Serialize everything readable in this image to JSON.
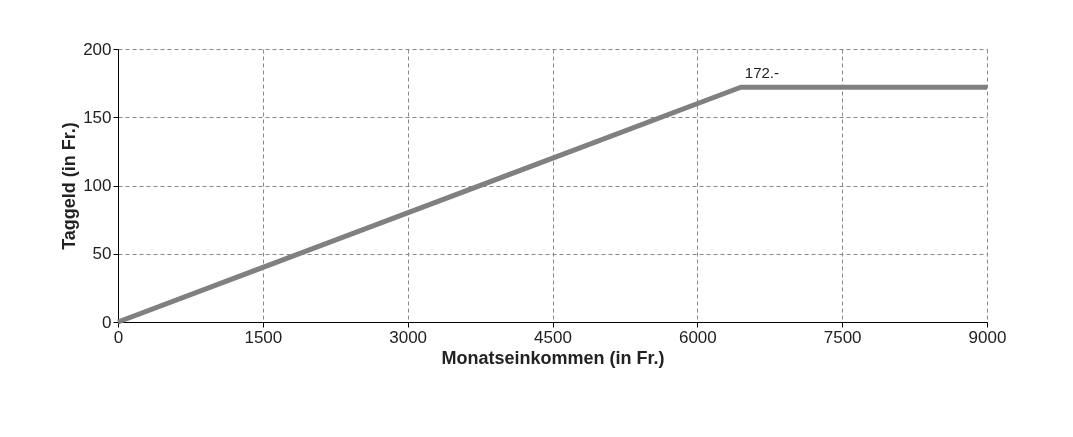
{
  "chart_data": {
    "type": "line",
    "xlabel": "Monatseinkommen (in Fr.)",
    "ylabel": "Taggeld (in Fr.)",
    "x": [
      0,
      6450,
      9000
    ],
    "series": [
      {
        "color": "#808080",
        "values": [
          0,
          172,
          172
        ]
      }
    ],
    "xlim": [
      0,
      9000
    ],
    "xticks": [
      0,
      1500,
      3000,
      4500,
      6000,
      7500,
      9000
    ],
    "ylim": [
      0,
      200
    ],
    "yticks": [
      0,
      50,
      100,
      150,
      200
    ],
    "grid": true,
    "marker": "none",
    "line_style": "solid",
    "annotations": [
      {
        "text": "172.-",
        "x": 6450,
        "y": 172
      }
    ]
  }
}
